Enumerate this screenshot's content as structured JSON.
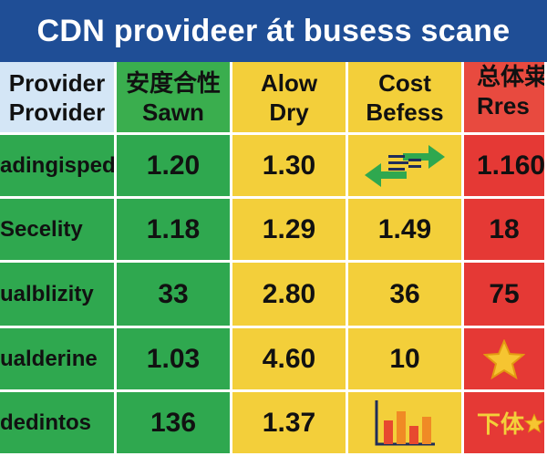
{
  "title": "CDN provideer át busess scane",
  "headers": [
    {
      "line1": "Provider",
      "line2": "Provider"
    },
    {
      "line1": "安度合性",
      "line2": "Sawn"
    },
    {
      "line1": "Alow",
      "line2": "Dry"
    },
    {
      "line1": "Cost",
      "line2": "Befess"
    },
    {
      "line1": "总体粜",
      "line2": "Rres"
    }
  ],
  "rows": [
    {
      "label": "adingispede",
      "c1": "1.20",
      "c2": "1.30",
      "c3_icon": "exchange-arrows-icon",
      "c4": "1.160"
    },
    {
      "label": "Secelity",
      "c1": "1.18",
      "c2": "1.29",
      "c3": "1.49",
      "c4": "18"
    },
    {
      "label": "ualblizity",
      "c1": "33",
      "c2": "2.80",
      "c3": "36",
      "c4": "75"
    },
    {
      "label": "ualderine",
      "c1": "1.03",
      "c2": "4.60",
      "c3": "10",
      "c4_icon": "star-icon"
    },
    {
      "label": "dedintos",
      "c1": "136",
      "c2": "1.37",
      "c3_icon": "bar-chart-icon",
      "c4": "下体",
      "c4_icon": "star-icon"
    }
  ],
  "colors": {
    "title_bg": "#1f4e96",
    "green": "#2fa84f",
    "yellow": "#f3cf3a",
    "red": "#e53935",
    "header_blue": "#d4e6f6"
  }
}
